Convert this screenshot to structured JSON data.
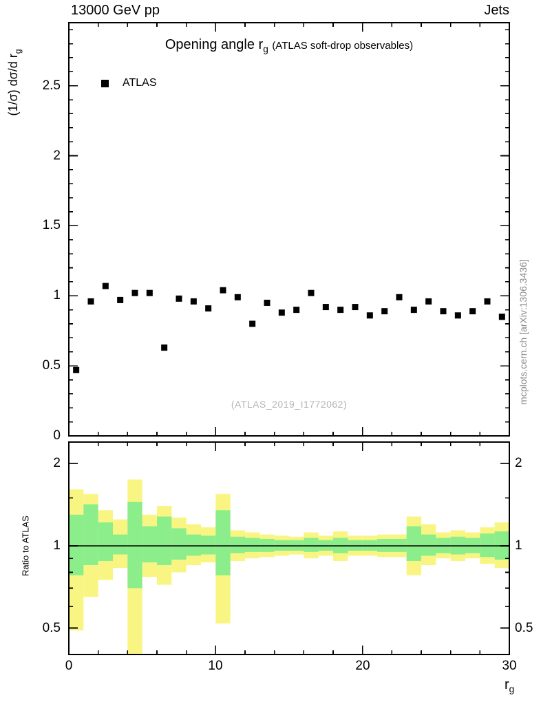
{
  "labels": {
    "header_left": "13000 GeV pp",
    "header_right": "Jets",
    "title_main": "Opening angle r",
    "title_sub": "g",
    "title_paren": "(ATLAS soft-drop observables)",
    "legend_atlas": "ATLAS",
    "watermark": "(ATLAS_2019_I1772062)",
    "side_text": "mcplots.cern.ch [arXiv:1306.3436]",
    "y_label_main": "(1/σ) dσ/d r",
    "y_label_sub": "g",
    "ratio_label": "Ratio to ATLAS",
    "x_label_main": "r",
    "x_label_sub": "g"
  },
  "colors": {
    "band_outer": "#f9f583",
    "band_inner": "#8bee8b",
    "marker": "#000000",
    "refline": "#000000",
    "frame": "#000000",
    "watermark": "#b5b5b5",
    "side_text": "#8c8c8c"
  },
  "chart_data": [
    {
      "type": "scatter",
      "title": "Opening angle r_g (ATLAS soft-drop observables)",
      "xlabel": "r_g",
      "ylabel": "(1/σ) dσ/d r_g",
      "legend_position": "top-left",
      "xlim": [
        0,
        30
      ],
      "ylim": [
        0,
        2.95
      ],
      "yticks": [
        0,
        0.5,
        1,
        1.5,
        2,
        2.5
      ],
      "xticks": [
        0,
        10,
        20,
        30
      ],
      "annotations": [
        "(ATLAS_2019_I1772062)",
        "13000 GeV pp",
        "Jets"
      ],
      "series": [
        {
          "name": "ATLAS",
          "marker": "filled-square",
          "color": "#000000",
          "x": [
            0.5,
            1.5,
            2.5,
            3.5,
            4.5,
            5.5,
            6.5,
            7.5,
            8.5,
            9.5,
            10.5,
            11.5,
            12.5,
            13.5,
            14.5,
            15.5,
            16.5,
            17.5,
            18.5,
            19.5,
            20.5,
            21.5,
            22.5,
            23.5,
            24.5,
            25.5,
            26.5,
            27.5,
            28.5,
            29.5
          ],
          "y": [
            0.47,
            0.96,
            1.07,
            0.97,
            1.02,
            1.02,
            0.63,
            0.98,
            0.96,
            0.91,
            1.04,
            0.99,
            0.8,
            0.95,
            0.88,
            0.9,
            1.02,
            0.92,
            0.9,
            0.92,
            0.86,
            0.89,
            0.99,
            0.9,
            0.96,
            0.89,
            0.86,
            0.89,
            0.96,
            0.85
          ]
        }
      ]
    },
    {
      "type": "band",
      "title": "Ratio to ATLAS",
      "ylabel": "Ratio to ATLAS",
      "xlabel": "r_g",
      "yscale": "log",
      "xlim": [
        0,
        30
      ],
      "ylim": [
        0.4,
        2.4
      ],
      "yticks": [
        0.5,
        1,
        2
      ],
      "xticks": [
        0,
        10,
        20,
        30
      ],
      "refline": 1,
      "bins": {
        "edges": [
          0,
          1,
          2,
          3,
          4,
          5,
          6,
          7,
          8,
          9,
          10,
          11,
          12,
          13,
          14,
          15,
          16,
          17,
          18,
          19,
          20,
          21,
          22,
          23,
          24,
          25,
          26,
          27,
          28,
          29,
          30
        ],
        "yellow_lo": [
          0.49,
          0.65,
          0.75,
          0.83,
          0.4,
          0.77,
          0.72,
          0.8,
          0.85,
          0.87,
          0.52,
          0.88,
          0.9,
          0.91,
          0.92,
          0.93,
          0.9,
          0.92,
          0.88,
          0.92,
          0.92,
          0.91,
          0.91,
          0.78,
          0.85,
          0.9,
          0.88,
          0.9,
          0.86,
          0.83
        ],
        "yellow_hi": [
          1.61,
          1.55,
          1.35,
          1.25,
          1.75,
          1.3,
          1.4,
          1.27,
          1.2,
          1.17,
          1.55,
          1.14,
          1.12,
          1.1,
          1.09,
          1.08,
          1.12,
          1.09,
          1.13,
          1.09,
          1.09,
          1.1,
          1.1,
          1.28,
          1.2,
          1.12,
          1.14,
          1.12,
          1.17,
          1.22
        ],
        "green_lo": [
          0.78,
          0.85,
          0.88,
          0.93,
          0.7,
          0.87,
          0.85,
          0.89,
          0.92,
          0.93,
          0.78,
          0.94,
          0.95,
          0.95,
          0.96,
          0.96,
          0.95,
          0.96,
          0.94,
          0.96,
          0.96,
          0.95,
          0.95,
          0.88,
          0.92,
          0.94,
          0.93,
          0.94,
          0.91,
          0.89
        ],
        "green_hi": [
          1.3,
          1.42,
          1.22,
          1.1,
          1.45,
          1.18,
          1.28,
          1.16,
          1.1,
          1.09,
          1.35,
          1.08,
          1.07,
          1.06,
          1.05,
          1.05,
          1.07,
          1.05,
          1.07,
          1.05,
          1.05,
          1.06,
          1.06,
          1.18,
          1.1,
          1.07,
          1.08,
          1.07,
          1.11,
          1.13
        ]
      }
    }
  ]
}
